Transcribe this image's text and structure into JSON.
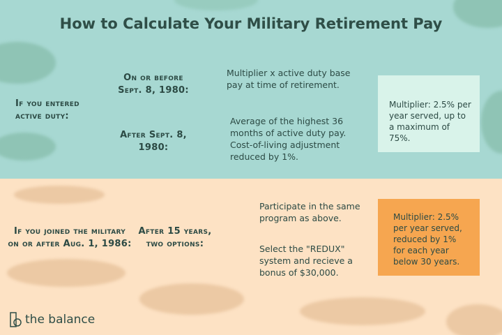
{
  "title": "How to Calculate Your Military Retirement Pay",
  "section1": {
    "condition": "If you entered active duty:",
    "branches": [
      {
        "label": "On or before Sept. 8, 1980:",
        "text": "Multiplier x active duty base pay at time of retirement."
      },
      {
        "label": "After Sept. 8, 1980:",
        "text": "Average of the highest 36 months of active duty pay. Cost-of-living adjustment reduced by 1%."
      }
    ],
    "multiplier_box": "Multiplier:  2.5% per year served, up to a maximum of 75%."
  },
  "section2": {
    "condition": "If you joined the military on or after Aug. 1, 1986:",
    "options_label": "After 15 years, two options:",
    "options": [
      "Participate in the same program as above.",
      "Select the \"REDUX\" system and recieve a bonus of $30,000."
    ],
    "multiplier_box": "Multiplier: 2.5% per year served, reduced by 1% for each year below 30 years."
  },
  "brand": "the balance",
  "colors": {
    "teal_bg": "#a7d8d2",
    "teal_arrow": "#4fa898",
    "light_box": "#d9f3ea",
    "peach_bg": "#fde2c4",
    "orange": "#f6a650",
    "text": "#2c4a44"
  }
}
